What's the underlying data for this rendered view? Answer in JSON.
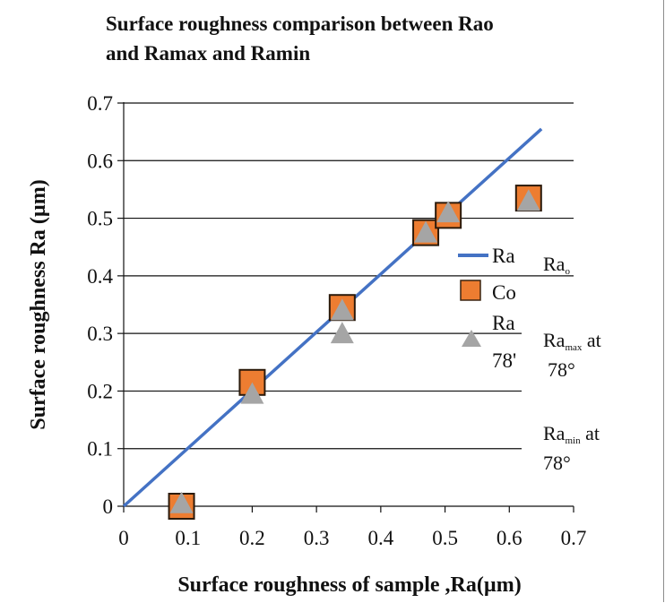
{
  "chart_data": {
    "type": "scatter",
    "title_lines": [
      "Surface roughness comparison between Rao",
      "and Ramax and Ramin"
    ],
    "xlabel": "Surface roughness of sample  ,Ra(µm)",
    "ylabel": "Surface roughness Ra (µm)",
    "xlim": [
      0,
      0.7
    ],
    "ylim": [
      0,
      0.7
    ],
    "xticks": [
      "0",
      "0.1",
      "0.2",
      "0.3",
      "0.4",
      "0.5",
      "0.6",
      "0.7"
    ],
    "yticks": [
      "0",
      "0.1",
      "0.2",
      "0.3",
      "0.4",
      "0.5",
      "0.6",
      "0.7"
    ],
    "grid": "horizontal",
    "series": [
      {
        "name": "Ra",
        "kind": "line",
        "color": "#4472c4",
        "x": [
          0,
          0.65
        ],
        "y": [
          0,
          0.655
        ]
      },
      {
        "name": "Co",
        "kind": "square",
        "color": "#ed7d31",
        "x": [
          0.09,
          0.2,
          0.34,
          0.47,
          0.505,
          0.63
        ],
        "y": [
          0,
          0.215,
          0.345,
          0.475,
          0.505,
          0.535
        ]
      },
      {
        "name": "Ra",
        "kind": "triangle",
        "color": "#a5a5a5",
        "x": [
          0.09,
          0.2,
          0.34,
          0.34,
          0.47,
          0.505,
          0.63
        ],
        "y": [
          0.005,
          0.195,
          0.34,
          0.3,
          0.475,
          0.51,
          0.53
        ]
      }
    ],
    "legend_clipped": [
      {
        "text": "Ra"
      },
      {
        "text": "Co"
      },
      {
        "text": "Ra"
      },
      {
        "text": "78'"
      }
    ],
    "annotations": [
      {
        "base": "Ra",
        "sub": "o",
        "after": ""
      },
      {
        "base": "Ra",
        "sub": "max",
        "after": " at",
        "line2": "78°"
      },
      {
        "base": "Ra",
        "sub": "min",
        "after": " at",
        "line2": "78°"
      }
    ]
  }
}
